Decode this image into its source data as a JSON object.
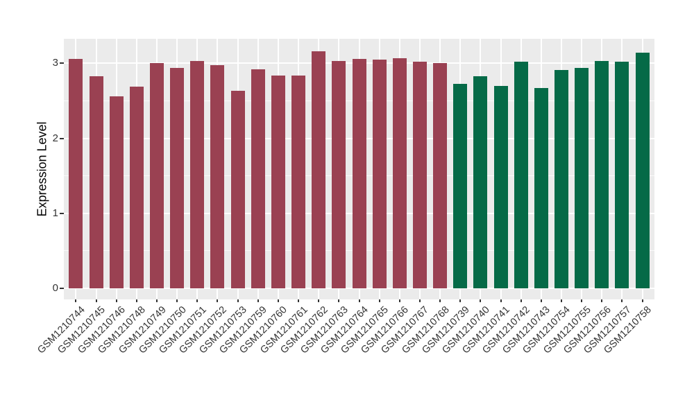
{
  "chart_data": {
    "type": "bar",
    "title": "",
    "xlabel": "",
    "ylabel": "Expression Level",
    "categories": [
      "GSM1210744",
      "GSM1210745",
      "GSM1210746",
      "GSM1210748",
      "GSM1210749",
      "GSM1210750",
      "GSM1210751",
      "GSM1210752",
      "GSM1210753",
      "GSM1210759",
      "GSM1210760",
      "GSM1210761",
      "GSM1210762",
      "GSM1210763",
      "GSM1210764",
      "GSM1210765",
      "GSM1210766",
      "GSM1210767",
      "GSM1210768",
      "GSM1210739",
      "GSM1210740",
      "GSM1210741",
      "GSM1210742",
      "GSM1210743",
      "GSM1210754",
      "GSM1210755",
      "GSM1210756",
      "GSM1210757",
      "GSM1210758"
    ],
    "values": [
      3.06,
      2.83,
      2.56,
      2.69,
      3.0,
      2.94,
      3.03,
      2.98,
      2.63,
      2.92,
      2.84,
      2.84,
      3.16,
      3.03,
      3.06,
      3.05,
      3.07,
      3.02,
      3.0,
      2.73,
      2.83,
      2.7,
      3.02,
      2.67,
      2.91,
      2.94,
      3.03,
      3.02,
      3.14
    ],
    "bar_colors": [
      "#9A4152",
      "#9A4152",
      "#9A4152",
      "#9A4152",
      "#9A4152",
      "#9A4152",
      "#9A4152",
      "#9A4152",
      "#9A4152",
      "#9A4152",
      "#9A4152",
      "#9A4152",
      "#9A4152",
      "#9A4152",
      "#9A4152",
      "#9A4152",
      "#9A4152",
      "#9A4152",
      "#9A4152",
      "#056A47",
      "#056A47",
      "#056A47",
      "#056A47",
      "#056A47",
      "#056A47",
      "#056A47",
      "#056A47",
      "#056A47",
      "#056A47"
    ],
    "color_groups": {
      "red_maroon": {
        "hex": "#9A4152",
        "count": 19
      },
      "dark_green": {
        "hex": "#056A47",
        "count": 10
      }
    },
    "yticks": [
      0,
      1,
      2,
      3
    ],
    "ytick_labels": [
      "0",
      "1",
      "2",
      "3"
    ],
    "minor_yticks": [
      0.5,
      1.5,
      2.5
    ],
    "ylim": [
      -0.15,
      3.33
    ],
    "grid": true,
    "legend": "none",
    "panel_background": "#EBEBEB",
    "grid_color": "#FFFFFF",
    "axis_text_color": "#333333"
  }
}
